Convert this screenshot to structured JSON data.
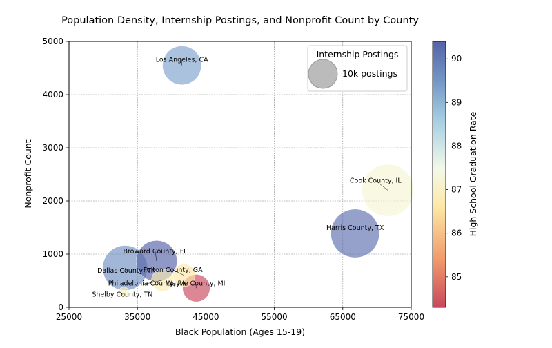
{
  "chart_data": {
    "type": "scatter",
    "title": "Population Density, Internship Postings, and Nonprofit Count by County",
    "xlabel": "Black Population (Ages 15-19)",
    "ylabel": "Nonprofit Count",
    "xlim": [
      25000,
      75000
    ],
    "ylim": [
      0,
      5000
    ],
    "xticks": [
      "25000",
      "35000",
      "45000",
      "55000",
      "65000",
      "75000"
    ],
    "yticks": [
      "0",
      "1000",
      "2000",
      "3000",
      "4000",
      "5000"
    ],
    "grid": true,
    "size_encoding": "Internship Postings",
    "color_encoding": "High School Graduation Rate",
    "colormap": "RdYlBu",
    "points": [
      {
        "label": "Los Angeles, CA",
        "x": 41500,
        "y": 4550,
        "postings": 18000,
        "grad_rate": 89.3
      },
      {
        "label": "Cook County, IL",
        "x": 71600,
        "y": 2200,
        "postings": 32000,
        "grad_rate": 87.2
      },
      {
        "label": "Harris County, TX",
        "x": 66800,
        "y": 1390,
        "postings": 28000,
        "grad_rate": 90.2
      },
      {
        "label": "Broward County, FL",
        "x": 37800,
        "y": 870,
        "postings": 20000,
        "grad_rate": 90.4
      },
      {
        "label": "Dallas County, TX",
        "x": 33200,
        "y": 740,
        "postings": 24000,
        "grad_rate": 89.6
      },
      {
        "label": "Fulton County, GA",
        "x": 41800,
        "y": 600,
        "postings": 6000,
        "grad_rate": 86.6
      },
      {
        "label": "Philadelphia County, PA",
        "x": 38700,
        "y": 510,
        "postings": 6000,
        "grad_rate": 86.8
      },
      {
        "label": "Wayne County, MI",
        "x": 43600,
        "y": 360,
        "postings": 9000,
        "grad_rate": 84.3
      },
      {
        "label": "Shelby County, TN",
        "x": 33000,
        "y": 280,
        "postings": 1400,
        "grad_rate": 87.0
      }
    ],
    "legend": {
      "title": "Internship Postings",
      "entry": "10k postings",
      "entry_value": 10000,
      "color": "#aaaaaa",
      "placement": "top-right"
    },
    "colorbar": {
      "label": "High School Graduation Rate",
      "min": 84.3,
      "max": 90.4,
      "ticks": [
        "85",
        "86",
        "87",
        "88",
        "89",
        "90"
      ],
      "tick_values": [
        85,
        86,
        87,
        88,
        89,
        90
      ]
    }
  }
}
